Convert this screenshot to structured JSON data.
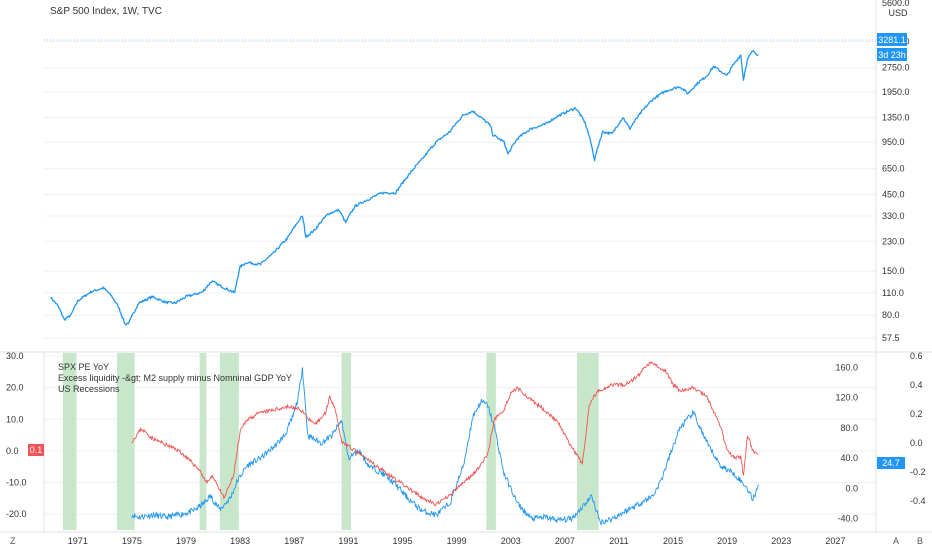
{
  "header": {
    "symbol_title": "S&P 500 Index, 1W, TVC",
    "currency": "USD",
    "price_badge": "3281.1",
    "countdown_badge": "3d 23h",
    "top_tick_cut": "5600.0"
  },
  "legend": {
    "items": [
      "SPX PE YoY",
      "Excess liquidity -&gt; M2 supply minus Nomninal GDP YoY",
      "US Recessions"
    ]
  },
  "badges": {
    "left_value": "0.1",
    "right_value": "24.7"
  },
  "bottom_bar": {
    "left_button": "Z",
    "auto_button": "A",
    "log_button": "B"
  },
  "colors": {
    "spx": "#2196f3",
    "pe": "#2196f3",
    "liquidity": "#f05454",
    "recession": "#c8e6c9",
    "grid": "#eef0f3",
    "text": "#333333"
  },
  "chart_data": [
    {
      "type": "line",
      "title": "S&P 500 Index, 1W, TVC",
      "scale": "log",
      "xlim": [
        1968.5,
        2030
      ],
      "ylim": [
        50,
        5600
      ],
      "y_ticks": [
        "4000.0",
        "2750.0",
        "1950.0",
        "1350.0",
        "950.0",
        "650.0",
        "450.0",
        "330.0",
        "230.0",
        "150.0",
        "110.0",
        "80.0",
        "57.5"
      ],
      "series": [
        {
          "name": "S&P 500 Index",
          "x": [
            1969.0,
            1969.5,
            1970.0,
            1970.5,
            1971.0,
            1972.0,
            1972.9,
            1973.5,
            1974.0,
            1974.5,
            1974.8,
            1975.5,
            1976.5,
            1977.5,
            1978.2,
            1979.0,
            1980.2,
            1980.9,
            1981.5,
            1982.6,
            1983.0,
            1983.5,
            1984.5,
            1985.5,
            1986.5,
            1987.6,
            1987.85,
            1988.5,
            1989.5,
            1990.3,
            1990.8,
            1991.5,
            1992.5,
            1993.5,
            1994.5,
            1995.5,
            1996.5,
            1997.5,
            1998.5,
            1999.5,
            2000.2,
            2000.8,
            2001.5,
            2001.7,
            2002.5,
            2002.8,
            2003.5,
            2004.5,
            2005.5,
            2006.5,
            2007.8,
            2008.5,
            2009.2,
            2009.8,
            2010.5,
            2011.3,
            2011.8,
            2012.5,
            2013.5,
            2014.5,
            2015.5,
            2016.1,
            2016.8,
            2017.5,
            2018.0,
            2018.98,
            2019.5,
            2020.0,
            2020.2,
            2020.5,
            2020.9,
            2021.3
          ],
          "values": [
            103,
            92,
            75,
            80,
            98,
            112,
            118,
            105,
            90,
            70,
            72,
            95,
            104,
            96,
            95,
            104,
            111,
            130,
            122,
            110,
            160,
            170,
            165,
            195,
            240,
            330,
            245,
            270,
            340,
            360,
            300,
            380,
            420,
            460,
            460,
            600,
            750,
            950,
            1100,
            1400,
            1480,
            1350,
            1200,
            1050,
            950,
            800,
            1000,
            1150,
            1220,
            1380,
            1550,
            1250,
            735,
            1100,
            1070,
            1350,
            1150,
            1400,
            1750,
            1980,
            2100,
            1900,
            2200,
            2450,
            2800,
            2450,
            2900,
            3300,
            2300,
            3100,
            3500,
            3300
          ]
        }
      ]
    },
    {
      "type": "line",
      "series_names_from_legend": [
        "SPX PE YoY",
        "Excess liquidity -&gt; M2 supply minus Nomninal GDP YoY",
        "US Recessions"
      ],
      "xlim": [
        1968.5,
        2030
      ],
      "x_ticks": [
        "1971",
        "1975",
        "1979",
        "1983",
        "1987",
        "1991",
        "1995",
        "1999",
        "2003",
        "2007",
        "2011",
        "2015",
        "2019",
        "2023",
        "2027"
      ],
      "left_axis": {
        "ylim": [
          -25,
          30
        ],
        "ticks": [
          "30.0",
          "20.0",
          "10.0",
          "0.0",
          "-10.0",
          "-20.0"
        ]
      },
      "middle_axis": {
        "ylim": [
          -55,
          175
        ],
        "ticks": [
          "160.0",
          "120.0",
          "80.0",
          "40.0",
          "0.0",
          "-40.0"
        ]
      },
      "right_axis": {
        "ylim": [
          -0.6,
          0.6
        ],
        "ticks": [
          "0.6",
          "0.4",
          "0.2",
          "0.0",
          "-0.2",
          "-0.4"
        ]
      },
      "recessions": [
        [
          1969.9,
          1970.9
        ],
        [
          1973.9,
          1975.2
        ],
        [
          1980.0,
          1980.5
        ],
        [
          1981.5,
          1982.9
        ],
        [
          1990.5,
          1991.2
        ],
        [
          2001.2,
          2001.9
        ],
        [
          2007.9,
          2009.5
        ]
      ],
      "series": [
        {
          "name": "SPX PE YoY",
          "axis": "middle",
          "x": [
            1975.0,
            1975.5,
            1976.5,
            1977.5,
            1978.5,
            1979.5,
            1980.3,
            1980.8,
            1981.5,
            1982.3,
            1982.8,
            1983.5,
            1984.5,
            1985.5,
            1986.3,
            1986.9,
            1987.3,
            1987.6,
            1988.0,
            1989.0,
            1989.8,
            1990.5,
            1991.0,
            1991.8,
            1992.5,
            1993.5,
            1994.5,
            1995.5,
            1996.5,
            1997.5,
            1998.5,
            1999.5,
            2000.2,
            2000.8,
            2001.3,
            2001.8,
            2002.5,
            2003.5,
            2004.5,
            2005.5,
            2006.5,
            2007.5,
            2008.0,
            2008.5,
            2009.0,
            2009.6,
            2010.5,
            2011.5,
            2012.5,
            2013.5,
            2014.1,
            2014.5,
            2015.5,
            2016.5,
            2017.5,
            2018.5,
            2019.0,
            2019.5,
            2020.0,
            2020.5,
            2020.9,
            2021.3
          ],
          "values": [
            -35,
            -38,
            -35,
            -38,
            -35,
            -30,
            -20,
            -10,
            -28,
            -12,
            10,
            30,
            40,
            55,
            70,
            95,
            120,
            160,
            70,
            60,
            70,
            90,
            40,
            50,
            30,
            20,
            5,
            -15,
            -30,
            -35,
            -20,
            30,
            95,
            115,
            110,
            80,
            20,
            -20,
            -40,
            -38,
            -42,
            -40,
            -30,
            -20,
            -10,
            -45,
            -40,
            -30,
            -20,
            -10,
            10,
            30,
            80,
            100,
            60,
            30,
            25,
            20,
            10,
            0,
            -15,
            5
          ]
        },
        {
          "name": "Excess liquidity -&gt; M2 supply minus Nomninal GDP YoY",
          "axis": "left",
          "x": [
            1975.0,
            1975.7,
            1976.5,
            1977.5,
            1978.5,
            1979.5,
            1980.0,
            1980.5,
            1981.0,
            1981.8,
            1982.5,
            1983.0,
            1983.5,
            1984.5,
            1985.5,
            1986.5,
            1987.5,
            1988.5,
            1989.3,
            1989.6,
            1990.0,
            1990.5,
            1991.5,
            1992.5,
            1993.5,
            1994.5,
            1995.5,
            1996.5,
            1997.5,
            1998.5,
            1999.5,
            2000.5,
            2001.3,
            2001.8,
            2002.5,
            2003.0,
            2003.5,
            2004.5,
            2005.5,
            2006.5,
            2007.5,
            2008.3,
            2008.8,
            2009.1,
            2009.5,
            2010.5,
            2011.5,
            2012.5,
            2013.0,
            2013.5,
            2014.0,
            2014.5,
            2015.0,
            2015.5,
            2016.5,
            2017.5,
            2018.5,
            2019.0,
            2019.5,
            2020.0,
            2020.2,
            2020.5,
            2020.9,
            2021.3
          ],
          "values": [
            3,
            7,
            4,
            2,
            0,
            -4,
            -6,
            -10,
            -8,
            -15,
            -8,
            6,
            10,
            12,
            13,
            14,
            13,
            8,
            12,
            17,
            14,
            3,
            0,
            -3,
            -6,
            -9,
            -12,
            -15,
            -17,
            -14,
            -10,
            -6,
            -1,
            10,
            13,
            18,
            20,
            16,
            13,
            9,
            1,
            -4,
            14,
            17,
            19,
            21,
            21,
            24,
            27,
            28,
            26,
            25,
            21,
            19,
            20,
            17,
            8,
            0,
            -2,
            -2,
            -8,
            5,
            0,
            -1
          ]
        }
      ]
    }
  ]
}
